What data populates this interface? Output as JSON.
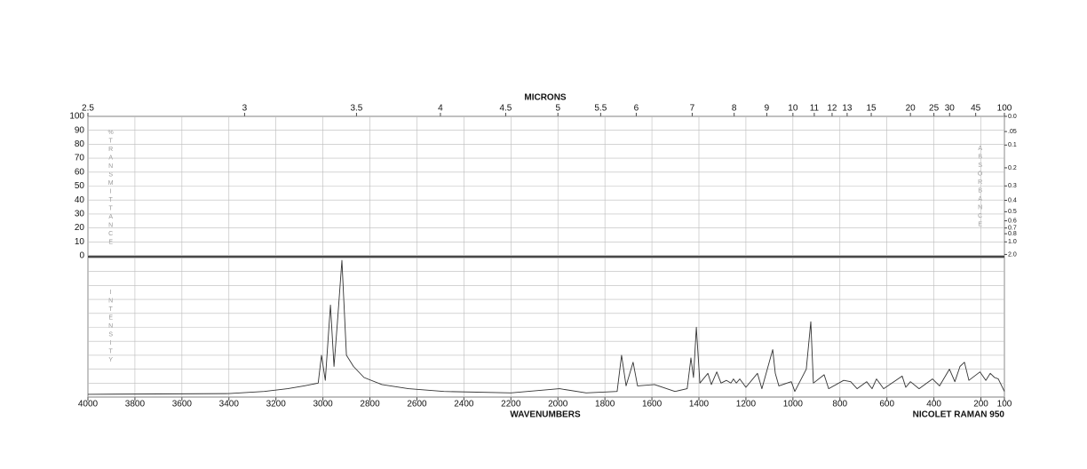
{
  "chart_data": {
    "type": "line",
    "x_label": "WAVENUMBERS",
    "x2_label": "MICRONS",
    "instrument": "NICOLET RAMAN 950",
    "y_label": "%TRANSMITTANCE",
    "y2_label": "ABSORBANCE",
    "lower_label": "INTENSITY",
    "xlim": [
      4000,
      100
    ],
    "ylim": [
      0,
      100
    ],
    "xticks": [
      4000,
      3800,
      3600,
      3400,
      3200,
      3000,
      2800,
      2600,
      2400,
      2200,
      2000,
      1800,
      1600,
      1400,
      1200,
      1000,
      800,
      600,
      400,
      200,
      100
    ],
    "x2ticks": [
      2.5,
      3,
      3.5,
      4,
      4.5,
      5,
      5.5,
      6,
      7,
      8,
      9,
      10,
      11,
      12,
      13,
      15,
      20,
      25,
      30,
      45,
      100
    ],
    "yticks": [
      0,
      10,
      20,
      30,
      40,
      50,
      60,
      70,
      80,
      90,
      100
    ],
    "y2ticks": [
      {
        "value": 0,
        "label": "0.0"
      },
      {
        "value": 0.05,
        "label": ".05"
      },
      0.1,
      0.2,
      0.3,
      0.4,
      0.5,
      0.6,
      0.7,
      0.8,
      {
        "value": 1,
        "label": "1.0"
      },
      {
        "value": 2,
        "label": "2.0"
      }
    ],
    "grid": true,
    "color": "#333333",
    "x": [
      4000,
      3400,
      3250,
      3150,
      3080,
      3020,
      3006,
      2990,
      2968,
      2953,
      2938,
      2919,
      2900,
      2870,
      2825,
      2749,
      2636,
      2485,
      2200,
      1993,
      1880,
      1748,
      1729,
      1710,
      1680,
      1661,
      1589,
      1502,
      1450,
      1434,
      1423,
      1411,
      1396,
      1362,
      1347,
      1324,
      1306,
      1283,
      1264,
      1253,
      1241,
      1226,
      1200,
      1151,
      1132,
      1086,
      1075,
      1060,
      1007,
      992,
      943,
      924,
      913,
      867,
      848,
      784,
      754,
      727,
      686,
      663,
      644,
      614,
      535,
      520,
      500,
      463,
      406,
      376,
      334,
      311,
      289,
      270,
      251,
      204,
      179,
      160,
      142,
      126,
      100
    ],
    "values": [
      2,
      2.5,
      4,
      6,
      8,
      10,
      30,
      12,
      66,
      22,
      54,
      98,
      30,
      22,
      14,
      9,
      6,
      4,
      3,
      6,
      3,
      4,
      30,
      8,
      25,
      8,
      9,
      4,
      6,
      28,
      14,
      50,
      10,
      17,
      9,
      18,
      10,
      12,
      10,
      13,
      10,
      13,
      7,
      17,
      6,
      34,
      17,
      8,
      11,
      4,
      20,
      54,
      10,
      16,
      6,
      12,
      11,
      6,
      11,
      6,
      13,
      6,
      15,
      7,
      11,
      6,
      13,
      8,
      20,
      11,
      22,
      25,
      12,
      18,
      12,
      17,
      14,
      13,
      4
    ]
  }
}
